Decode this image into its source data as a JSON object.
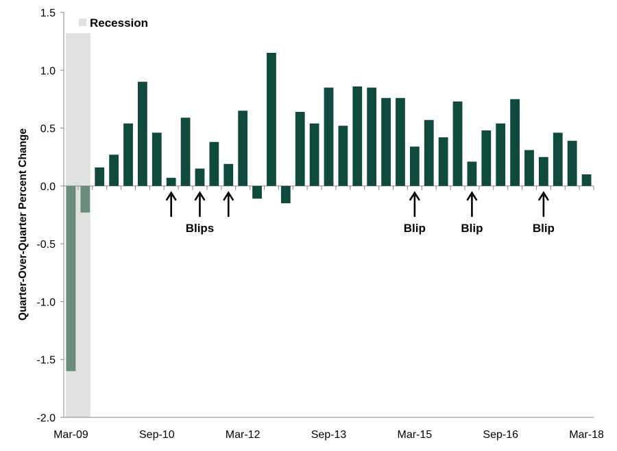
{
  "chart_data": {
    "type": "bar",
    "ylabel": "Quarter-Over-Quarter Percent Change",
    "xlabel": "",
    "ylim": [
      -2.0,
      1.5
    ],
    "yticks": [
      "1.5",
      "1.0",
      "0.5",
      "0.0",
      "-0.5",
      "-1.0",
      "-1.5",
      "-2.0"
    ],
    "ytick_values": [
      1.5,
      1.0,
      0.5,
      0.0,
      -0.5,
      -1.0,
      -1.5,
      -2.0
    ],
    "x_tick_labels": [
      {
        "label": "Mar-09",
        "index": 0
      },
      {
        "label": "Sep-10",
        "index": 6
      },
      {
        "label": "Mar-12",
        "index": 12
      },
      {
        "label": "Sep-13",
        "index": 18
      },
      {
        "label": "Mar-15",
        "index": 24
      },
      {
        "label": "Sep-16",
        "index": 30
      },
      {
        "label": "Mar-18",
        "index": 36
      }
    ],
    "categories": [
      "Mar-09",
      "Jun-09",
      "Sep-09",
      "Dec-09",
      "Mar-10",
      "Jun-10",
      "Sep-10",
      "Dec-10",
      "Mar-11",
      "Jun-11",
      "Sep-11",
      "Dec-11",
      "Mar-12",
      "Jun-12",
      "Sep-12",
      "Dec-12",
      "Mar-13",
      "Jun-13",
      "Sep-13",
      "Dec-13",
      "Mar-14",
      "Jun-14",
      "Sep-14",
      "Dec-14",
      "Mar-15",
      "Jun-15",
      "Sep-15",
      "Dec-15",
      "Mar-16",
      "Jun-16",
      "Sep-16",
      "Dec-16",
      "Mar-17",
      "Jun-17",
      "Sep-17",
      "Dec-17",
      "Mar-18"
    ],
    "values": [
      -1.6,
      -0.23,
      0.16,
      0.27,
      0.54,
      0.9,
      0.46,
      0.07,
      0.59,
      0.15,
      0.38,
      0.19,
      0.65,
      -0.11,
      1.15,
      -0.15,
      0.64,
      0.54,
      0.85,
      0.52,
      0.86,
      0.85,
      0.76,
      0.76,
      0.34,
      0.57,
      0.42,
      0.73,
      0.21,
      0.48,
      0.54,
      0.75,
      0.31,
      0.25,
      0.46,
      0.39,
      0.1
    ],
    "recession_indices": [
      0,
      1
    ],
    "legend": {
      "label": "Recession",
      "placement": "top-left"
    },
    "annotations": [
      {
        "text": "Blips",
        "arrow_indices": [
          7,
          9,
          11
        ]
      },
      {
        "text": "Blip",
        "arrow_indices": [
          24
        ]
      },
      {
        "text": "Blip",
        "arrow_indices": [
          28
        ]
      },
      {
        "text": "Blip",
        "arrow_indices": [
          33
        ]
      }
    ],
    "colors": {
      "bar": "#0f4a3c",
      "recession_bar": "#6b8c7c",
      "recession_band": "#dfe2df",
      "axis": "#888888"
    }
  }
}
